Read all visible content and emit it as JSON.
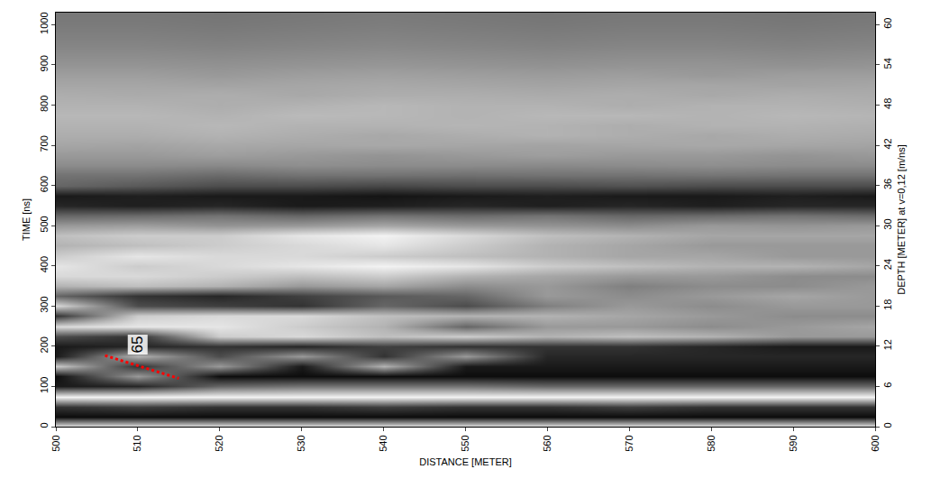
{
  "chart_data": {
    "type": "heatmap",
    "x_label": "DISTANCE [METER]",
    "y_label": "TIME [ns]",
    "y2_label": "DEPTH [METER] at v=0,12 [m/ns]",
    "color": "gray",
    "grid": false,
    "xlim": [
      500,
      600
    ],
    "xticks": [
      500,
      510,
      520,
      530,
      540,
      550,
      560,
      570,
      580,
      590,
      600
    ],
    "ylim": [
      0,
      1030
    ],
    "yticks": [
      0,
      100,
      200,
      300,
      400,
      500,
      600,
      700,
      800,
      900,
      1000
    ],
    "y2lim": [
      0,
      61.8
    ],
    "y2ticks": [
      0,
      6,
      12,
      18,
      24,
      30,
      36,
      42,
      48,
      54,
      60
    ],
    "zlim": [
      0,
      100
    ],
    "x": [
      500,
      510,
      520,
      530,
      540,
      550,
      560,
      570,
      580,
      590,
      600
    ],
    "y": [
      0,
      25,
      50,
      75,
      100,
      125,
      150,
      175,
      200,
      225,
      250,
      275,
      300,
      325,
      350,
      375,
      400,
      425,
      450,
      475,
      500,
      525,
      550,
      575,
      600,
      625,
      650,
      675,
      700,
      725,
      750,
      775,
      800,
      825,
      850,
      875,
      900,
      925,
      950,
      975,
      1000,
      1025
    ],
    "z": [
      [
        90,
        90,
        90,
        90,
        90,
        90,
        90,
        90,
        90,
        90,
        90
      ],
      [
        5,
        5,
        5,
        5,
        5,
        5,
        5,
        5,
        5,
        5,
        5
      ],
      [
        20,
        25,
        20,
        20,
        25,
        20,
        20,
        25,
        20,
        20,
        20
      ],
      [
        95,
        95,
        95,
        95,
        95,
        95,
        95,
        95,
        95,
        95,
        95
      ],
      [
        10,
        15,
        40,
        45,
        45,
        45,
        40,
        40,
        40,
        40,
        40
      ],
      [
        5,
        60,
        5,
        5,
        5,
        5,
        5,
        5,
        5,
        5,
        5
      ],
      [
        80,
        20,
        60,
        10,
        70,
        10,
        10,
        10,
        10,
        10,
        10
      ],
      [
        10,
        70,
        30,
        60,
        20,
        60,
        15,
        15,
        15,
        15,
        15
      ],
      [
        10,
        15,
        20,
        15,
        25,
        20,
        20,
        20,
        15,
        10,
        10
      ],
      [
        30,
        20,
        80,
        85,
        75,
        80,
        70,
        75,
        70,
        60,
        60
      ],
      [
        85,
        90,
        90,
        80,
        70,
        40,
        60,
        60,
        55,
        60,
        65
      ],
      [
        20,
        80,
        85,
        85,
        75,
        70,
        70,
        65,
        60,
        55,
        55
      ],
      [
        85,
        30,
        25,
        20,
        40,
        30,
        50,
        60,
        55,
        60,
        60
      ],
      [
        40,
        20,
        15,
        25,
        35,
        40,
        60,
        55,
        60,
        65,
        60
      ],
      [
        70,
        75,
        70,
        60,
        65,
        55,
        60,
        50,
        55,
        55,
        60
      ],
      [
        85,
        85,
        80,
        75,
        80,
        70,
        65,
        60,
        60,
        55,
        55
      ],
      [
        90,
        80,
        85,
        90,
        95,
        90,
        80,
        75,
        70,
        70,
        65
      ],
      [
        80,
        90,
        85,
        85,
        80,
        75,
        70,
        65,
        65,
        60,
        60
      ],
      [
        70,
        75,
        80,
        85,
        90,
        80,
        70,
        65,
        60,
        60,
        60
      ],
      [
        75,
        80,
        80,
        90,
        95,
        85,
        75,
        70,
        65,
        65,
        65
      ],
      [
        60,
        62,
        58,
        60,
        65,
        60,
        58,
        55,
        60,
        58,
        60
      ],
      [
        40,
        42,
        45,
        40,
        45,
        42,
        45,
        40,
        42,
        45,
        42
      ],
      [
        15,
        12,
        15,
        10,
        12,
        15,
        12,
        15,
        12,
        15,
        15
      ],
      [
        10,
        12,
        10,
        10,
        8,
        10,
        12,
        10,
        10,
        12,
        10
      ],
      [
        40,
        35,
        30,
        30,
        28,
        30,
        30,
        32,
        30,
        30,
        30
      ],
      [
        45,
        45,
        42,
        45,
        45,
        44,
        45,
        45,
        46,
        45,
        45
      ],
      [
        55,
        55,
        54,
        56,
        55,
        55,
        54,
        55,
        56,
        55,
        55
      ],
      [
        60,
        60,
        62,
        60,
        58,
        60,
        62,
        60,
        60,
        58,
        60
      ],
      [
        65,
        64,
        66,
        65,
        66,
        65,
        64,
        65,
        66,
        65,
        64
      ],
      [
        68,
        68,
        70,
        68,
        66,
        68,
        70,
        68,
        66,
        68,
        67
      ],
      [
        70,
        70,
        72,
        70,
        70,
        71,
        70,
        68,
        70,
        70,
        69
      ],
      [
        72,
        72,
        70,
        73,
        72,
        70,
        72,
        72,
        70,
        72,
        71
      ],
      [
        70,
        70,
        68,
        70,
        72,
        70,
        70,
        68,
        70,
        70,
        69
      ],
      [
        68,
        67,
        68,
        66,
        68,
        68,
        67,
        68,
        66,
        68,
        67
      ],
      [
        65,
        65,
        64,
        65,
        66,
        65,
        64,
        65,
        65,
        64,
        65
      ],
      [
        62,
        62,
        60,
        62,
        63,
        62,
        61,
        62,
        60,
        62,
        62
      ],
      [
        58,
        58,
        57,
        58,
        59,
        58,
        57,
        58,
        58,
        57,
        58
      ],
      [
        55,
        55,
        54,
        55,
        56,
        55,
        54,
        55,
        55,
        54,
        55
      ],
      [
        52,
        52,
        51,
        52,
        53,
        52,
        51,
        52,
        52,
        51,
        52
      ],
      [
        50,
        50,
        49,
        50,
        51,
        50,
        49,
        50,
        50,
        49,
        50
      ],
      [
        48,
        48,
        47,
        48,
        49,
        48,
        47,
        48,
        48,
        47,
        48
      ],
      [
        47,
        47,
        46,
        47,
        48,
        47,
        46,
        47,
        47,
        46,
        47
      ]
    ],
    "lines": [
      {
        "x": [
          506,
          515
        ],
        "y": [
          177,
          120
        ],
        "color": "red",
        "line_style": "dotted"
      }
    ],
    "annotations": [
      {
        "text": "65",
        "x": 510,
        "y": 205
      }
    ]
  }
}
